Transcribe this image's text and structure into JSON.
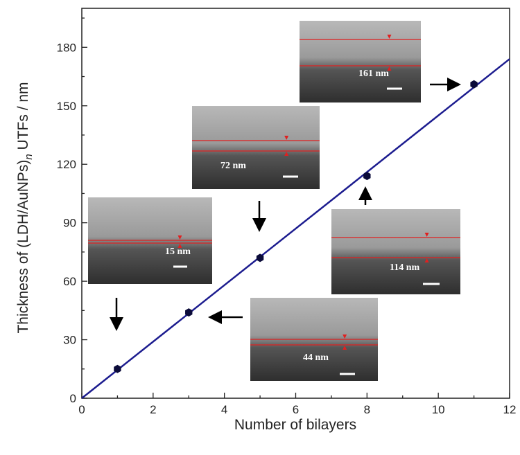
{
  "chart_data": {
    "type": "scatter",
    "xlabel": "Number of bilayers",
    "ylabel": {
      "main": "Thickness of (LDH/AuNPs)",
      "sub": "n",
      "rest": " UTFs / nm"
    },
    "x": [
      1,
      3,
      5,
      8,
      11
    ],
    "values": [
      15,
      44,
      72,
      114,
      161
    ],
    "color": "#0b0b3a",
    "fit": {
      "x": [
        0,
        12
      ],
      "values": [
        0,
        174
      ],
      "color": "#1c1c8f"
    },
    "xlim": [
      0,
      12
    ],
    "ylim": [
      0,
      200
    ],
    "xticks": [
      0,
      2,
      4,
      6,
      8,
      10,
      12
    ],
    "yticks": [
      0,
      30,
      60,
      90,
      120,
      150,
      180
    ],
    "xminorticks": [
      1,
      3,
      5,
      7,
      9,
      11
    ],
    "yminorticks": [
      15,
      45,
      75,
      105,
      135,
      165,
      195
    ],
    "annotations": [
      "15 nm",
      "44 nm",
      "72 nm",
      "114 nm",
      "161 nm"
    ]
  }
}
